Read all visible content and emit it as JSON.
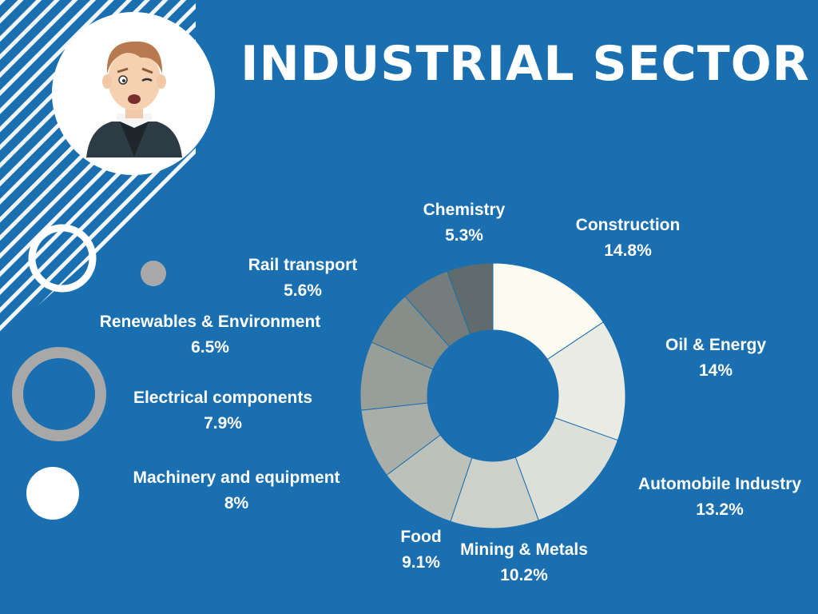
{
  "title": "INDUSTRIAL SECTOR",
  "colors": {
    "background": "#1a6fb0",
    "decoration_gray": "#a8a8a8",
    "decoration_white": "#ffffff",
    "slice_light": "#fbfbf0",
    "slice_dark": "#5f6b6d"
  },
  "icons": {
    "avatar": "worried-man-avatar-icon"
  },
  "chart_data": {
    "type": "pie",
    "variant": "donut",
    "title": "INDUSTRIAL SECTOR",
    "legend": "none",
    "slices": [
      {
        "label": "Construction",
        "value": 14.8,
        "value_label": "14.8%",
        "color": "#fbfbf0"
      },
      {
        "label": "Oil & Energy",
        "value": 14,
        "value_label": "14%",
        "color": "#eaece3"
      },
      {
        "label": "Automobile Industry",
        "value": 13.2,
        "value_label": "13.2%",
        "color": "#dde0d8"
      },
      {
        "label": "Mining & Metals",
        "value": 10.2,
        "value_label": "10.2%",
        "color": "#cdd1c9"
      },
      {
        "label": "Food",
        "value": 9.1,
        "value_label": "9.1%",
        "color": "#bcc1ba"
      },
      {
        "label": "Machinery and equipment",
        "value": 8,
        "value_label": "8%",
        "color": "#a9afa8"
      },
      {
        "label": "Electrical components",
        "value": 7.9,
        "value_label": "7.9%",
        "color": "#989f99"
      },
      {
        "label": "Renewables & Environment",
        "value": 6.5,
        "value_label": "6.5%",
        "color": "#868e89"
      },
      {
        "label": "Rail transport",
        "value": 5.6,
        "value_label": "5.6%",
        "color": "#747d7b"
      },
      {
        "label": "Chemistry",
        "value": 5.3,
        "value_label": "5.3%",
        "color": "#5f6b6d"
      }
    ]
  }
}
